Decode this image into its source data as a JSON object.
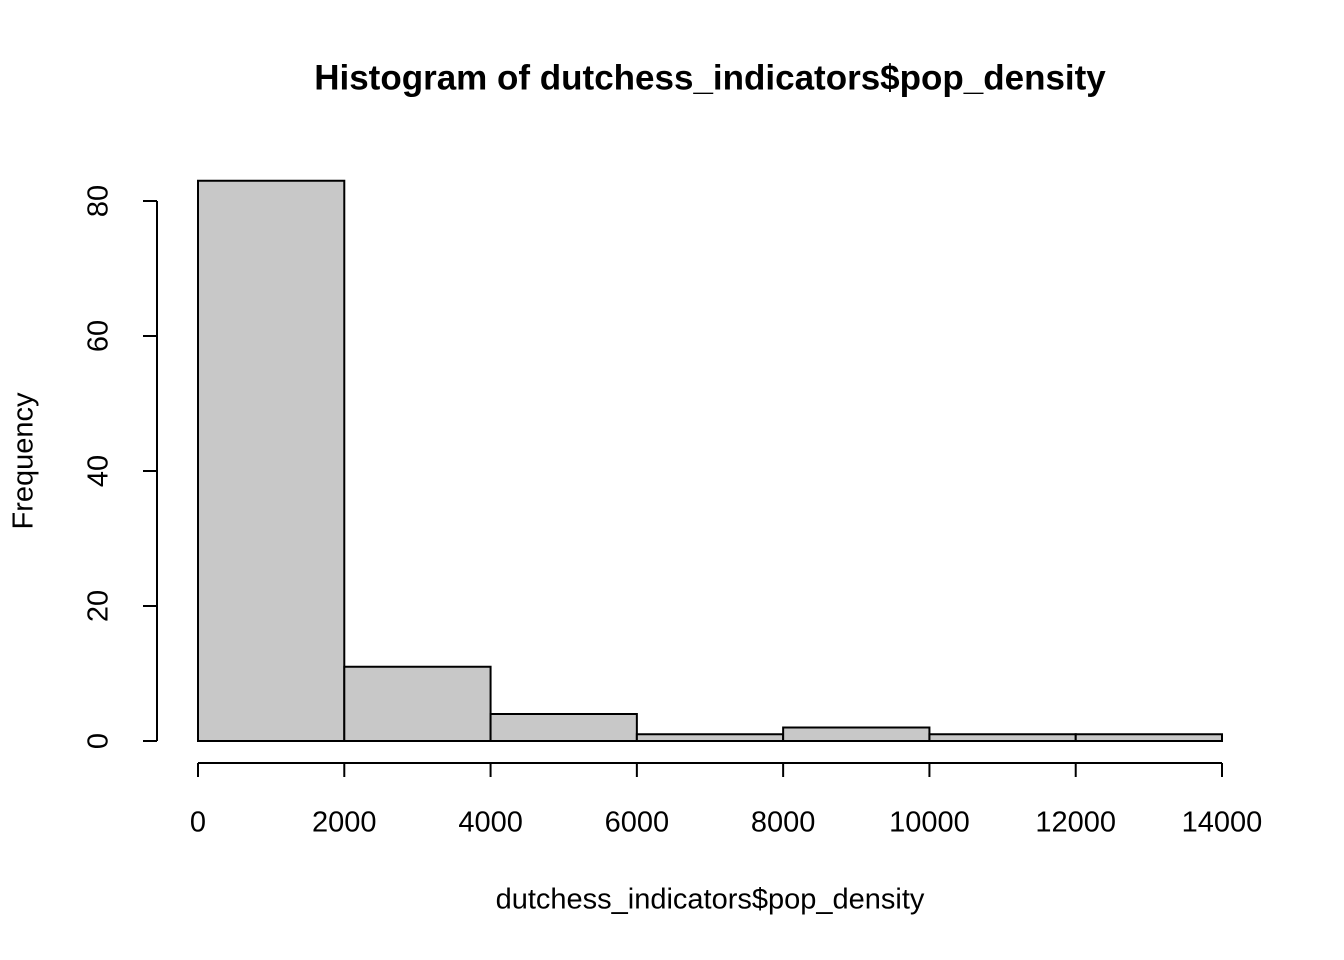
{
  "chart_data": {
    "type": "histogram",
    "title": "Histogram of dutchess_indicators$pop_density",
    "x_label": "dutchess_indicators$pop_density",
    "y_label": "Frequency",
    "bins": [
      0,
      2000,
      4000,
      6000,
      8000,
      10000,
      12000,
      14000
    ],
    "counts": [
      83,
      11,
      4,
      1,
      2,
      1,
      1
    ],
    "color": "#c8c8c8",
    "xlim": [
      0,
      14000
    ],
    "xticks": [
      0,
      2000,
      4000,
      6000,
      8000,
      10000,
      12000,
      14000
    ],
    "ylim": [
      0,
      83
    ],
    "yticks": [
      0,
      20,
      40,
      60,
      80
    ]
  }
}
